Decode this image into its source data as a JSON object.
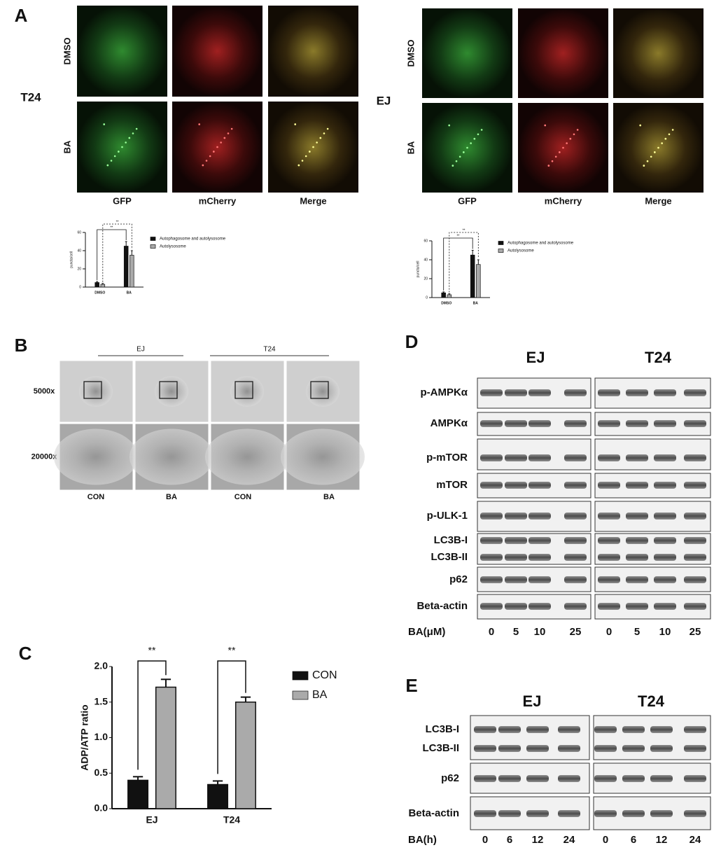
{
  "panel_a": {
    "label": "A",
    "t24": {
      "cell_line": "T24",
      "rows": [
        "DMSO",
        "BA"
      ],
      "columns": [
        "GFP",
        "mCherry",
        "Merge"
      ],
      "chart": {
        "type": "bar",
        "ylabel": "puncta/cell",
        "categories": [
          "DMSO",
          "BA"
        ],
        "series": [
          {
            "name": "Autophagosome and autolysosome",
            "color": "#111111",
            "values": [
              5,
              45
            ],
            "errors": [
              1,
              5
            ]
          },
          {
            "name": "Autolysosome",
            "color": "#aaaaaa",
            "values": [
              3,
              35
            ],
            "errors": [
              1,
              5
            ]
          }
        ],
        "ylim": [
          0,
          60
        ],
        "yticks": [
          0,
          20,
          40,
          60
        ],
        "annotations": [
          "**",
          "**"
        ]
      }
    },
    "ej": {
      "cell_line": "EJ",
      "rows": [
        "DMSO",
        "BA"
      ],
      "columns": [
        "GFP",
        "mCherry",
        "Merge"
      ],
      "chart": {
        "type": "bar",
        "ylabel": "puncta/cell",
        "categories": [
          "DMSO",
          "BA"
        ],
        "series": [
          {
            "name": "Autophagosome and autolysosome",
            "color": "#111111",
            "values": [
              5,
              45
            ],
            "errors": [
              1,
              5
            ]
          },
          {
            "name": "Autolysosome",
            "color": "#aaaaaa",
            "values": [
              3,
              35
            ],
            "errors": [
              1,
              5
            ]
          }
        ],
        "ylim": [
          0,
          60
        ],
        "yticks": [
          0,
          20,
          40,
          60
        ],
        "annotations": [
          "**",
          "**"
        ]
      }
    }
  },
  "panel_b": {
    "label": "B",
    "groups": [
      "EJ",
      "T24"
    ],
    "rows": [
      "5000x",
      "20000x"
    ],
    "columns": [
      "CON",
      "BA",
      "CON",
      "BA"
    ]
  },
  "panel_c": {
    "label": "C",
    "chart": {
      "type": "bar",
      "ylabel": "ADP/ATP ratio",
      "categories": [
        "EJ",
        "T24"
      ],
      "series": [
        {
          "name": "CON",
          "color": "#111111",
          "values": [
            0.4,
            0.34
          ],
          "errors": [
            0.05,
            0.05
          ]
        },
        {
          "name": "BA",
          "color": "#aaaaaa",
          "values": [
            1.71,
            1.5
          ],
          "errors": [
            0.11,
            0.07
          ]
        }
      ],
      "ylim": [
        0,
        2
      ],
      "yticks": [
        {
          "value": 0,
          "label": "0.0"
        },
        {
          "value": 0.5,
          "label": "0.5"
        },
        {
          "value": 1,
          "label": "1.0"
        },
        {
          "value": 1.5,
          "label": "1.5"
        },
        {
          "value": 2,
          "label": "2.0"
        }
      ],
      "annotations": [
        "**",
        "**"
      ]
    }
  },
  "panel_d": {
    "label": "D",
    "groups": [
      "EJ",
      "T24"
    ],
    "rows": [
      [
        "p-AMPKα"
      ],
      [
        "AMPKα"
      ],
      [
        "p-mTOR"
      ],
      [
        "mTOR"
      ],
      [
        "p-ULK-1"
      ],
      [
        "LC3B-I",
        "LC3B-II"
      ],
      [
        "p62"
      ],
      [
        "Beta-actin"
      ]
    ],
    "treatment": "BA(μM)",
    "doses": [
      0,
      5,
      10,
      25
    ]
  },
  "panel_e": {
    "label": "E",
    "groups": [
      "EJ",
      "T24"
    ],
    "rows": [
      [
        "LC3B-I",
        "LC3B-II"
      ],
      [
        "p62"
      ],
      [
        "Beta-actin"
      ]
    ],
    "treatment": "BA(h)",
    "doses": [
      0,
      6,
      12,
      24
    ]
  }
}
